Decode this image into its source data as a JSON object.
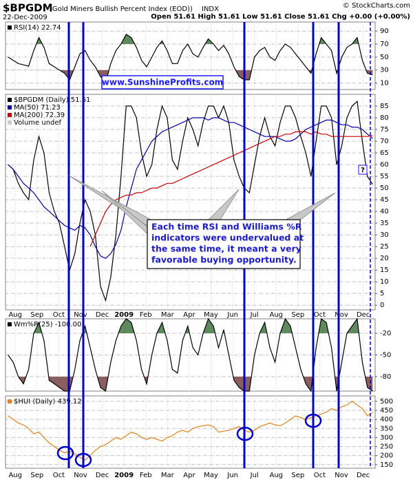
{
  "header": {
    "symbol": "$BPGDM",
    "description": "(Gold Miners Bullish Percent Index (EOD))",
    "exchange": "INDX",
    "date": "22-Dec-2009",
    "quote": "Open 51.61  High 51.61  Low 51.61  Close 51.61  Chg +0.00 (+0.00%)",
    "source": "© StockCharts.com"
  },
  "months": [
    "Aug",
    "Sep",
    "Oct",
    "Nov",
    "Dec",
    "2009",
    "Feb",
    "Mar",
    "Apr",
    "May",
    "Jun",
    "Jul",
    "Aug",
    "Sep",
    "Oct",
    "Nov",
    "Dec"
  ],
  "annotations": {
    "website": "www.SunshineProfits.com",
    "callout": [
      "Each time RSI and Williams %R",
      "indicators were undervalued at",
      "the same time, it meant a very",
      "favorable buying opportunity."
    ],
    "question": "?"
  },
  "chart_data": [
    {
      "type": "line",
      "title": "RSI(14) 22.74",
      "ylim": [
        0,
        104
      ],
      "yticks": [
        10,
        30,
        50,
        70,
        90
      ],
      "fill_above": 70,
      "fill_below": 30,
      "fill_colors": [
        "#5e8a5e",
        "#8a5e5e"
      ],
      "series": [
        {
          "color": "#000000",
          "values": [
            50,
            45,
            40,
            38,
            36,
            60,
            80,
            65,
            40,
            35,
            30,
            25,
            15,
            35,
            55,
            60,
            45,
            35,
            20,
            10,
            40,
            60,
            70,
            85,
            80,
            65,
            45,
            35,
            50,
            65,
            75,
            60,
            40,
            40,
            60,
            70,
            55,
            50,
            65,
            78,
            70,
            60,
            68,
            55,
            35,
            20,
            15,
            15,
            50,
            60,
            65,
            50,
            45,
            60,
            70,
            65,
            55,
            45,
            35,
            25,
            55,
            80,
            70,
            60,
            25,
            50,
            65,
            70,
            80,
            45,
            25,
            22.74
          ]
        }
      ]
    },
    {
      "type": "line",
      "ylim": [
        -2,
        90
      ],
      "yticks": [
        0,
        5,
        10,
        15,
        20,
        25,
        30,
        35,
        40,
        45,
        50,
        55,
        60,
        65,
        70,
        75,
        80,
        85
      ],
      "volume_label": "Volume undef",
      "series": [
        {
          "name": "$BPGDM (Daily) 51.61",
          "color": "#000000",
          "values": [
            60,
            58,
            52,
            48,
            45,
            62,
            72,
            65,
            48,
            40,
            35,
            25,
            15,
            22,
            35,
            45,
            40,
            30,
            8,
            2,
            12,
            30,
            55,
            85,
            85,
            80,
            65,
            55,
            60,
            75,
            85,
            80,
            62,
            58,
            70,
            80,
            75,
            68,
            78,
            85,
            85,
            80,
            85,
            78,
            62,
            55,
            50,
            48,
            60,
            72,
            80,
            72,
            68,
            78,
            85,
            85,
            80,
            72,
            65,
            55,
            70,
            85,
            85,
            80,
            60,
            68,
            80,
            85,
            87,
            70,
            55,
            51.61
          ]
        },
        {
          "name": "MA(50) 71.23",
          "color": "#0000aa",
          "values": [
            60,
            58,
            55,
            52,
            50,
            48,
            45,
            42,
            40,
            38,
            36,
            34,
            33,
            32,
            34,
            33,
            30,
            25,
            21,
            20,
            22,
            26,
            32,
            42,
            50,
            58,
            62,
            66,
            70,
            72,
            74,
            75,
            76,
            77,
            78,
            79,
            80,
            80,
            80,
            79,
            80,
            80,
            79,
            78,
            78,
            77,
            76,
            75,
            74,
            73,
            72,
            72,
            72,
            71,
            70,
            70,
            71,
            73,
            75,
            76,
            77,
            78,
            79,
            79,
            78,
            77,
            77,
            76,
            76,
            75,
            73,
            71.23
          ]
        },
        {
          "name": "MA(200) 72.39",
          "color": "#cc0000",
          "values": [
            null,
            null,
            null,
            null,
            null,
            null,
            null,
            null,
            null,
            null,
            null,
            null,
            null,
            null,
            null,
            null,
            25,
            30,
            35,
            40,
            43,
            45,
            46,
            47,
            47,
            48,
            48,
            49,
            50,
            50,
            51,
            52,
            52,
            53,
            54,
            55,
            56,
            57,
            58,
            59,
            60,
            61,
            62,
            63,
            64,
            65,
            66,
            67,
            68,
            69,
            70,
            71,
            72,
            72,
            73,
            73,
            74,
            74,
            74,
            73,
            74,
            73,
            73,
            72,
            72,
            72,
            72,
            72,
            72,
            72,
            72,
            72.39
          ]
        }
      ]
    },
    {
      "type": "line",
      "title": "Wm%R(25) -100.00",
      "ylim": [
        -100,
        0
      ],
      "yticks": [
        -20,
        -50,
        -80
      ],
      "fill_above": -20,
      "fill_below": -80,
      "fill_colors": [
        "#5e8a5e",
        "#8a5e5e"
      ],
      "series": [
        {
          "color": "#000000",
          "values": [
            -50,
            -60,
            -80,
            -90,
            -70,
            -20,
            -5,
            -30,
            -85,
            -90,
            -95,
            -100,
            -100,
            -70,
            -30,
            -10,
            -40,
            -70,
            -95,
            -100,
            -60,
            -30,
            -10,
            0,
            -5,
            -30,
            -70,
            -90,
            -50,
            -20,
            -5,
            -30,
            -70,
            -75,
            -30,
            -10,
            -40,
            -50,
            -20,
            0,
            -10,
            -40,
            -15,
            -50,
            -85,
            -95,
            -100,
            -100,
            -50,
            -20,
            -5,
            -40,
            -60,
            -20,
            0,
            -10,
            -40,
            -70,
            -90,
            -100,
            -40,
            0,
            -5,
            -40,
            -100,
            -60,
            -20,
            -10,
            0,
            -60,
            -95,
            -100
          ]
        }
      ]
    },
    {
      "type": "line",
      "title": "$HUI (Daily) 439.12",
      "ylim": [
        130,
        530
      ],
      "yticks": [
        150,
        200,
        250,
        300,
        350,
        400,
        450,
        500
      ],
      "series": [
        {
          "color": "#e8821e",
          "values": [
            420,
            400,
            380,
            370,
            350,
            320,
            330,
            300,
            270,
            250,
            230,
            215,
            225,
            210,
            190,
            175,
            200,
            230,
            250,
            260,
            280,
            300,
            290,
            310,
            330,
            320,
            300,
            290,
            300,
            290,
            280,
            300,
            310,
            330,
            340,
            330,
            350,
            360,
            365,
            370,
            360,
            330,
            335,
            340,
            350,
            360,
            340,
            330,
            340,
            360,
            370,
            380,
            370,
            365,
            380,
            400,
            420,
            410,
            400,
            410,
            420,
            430,
            440,
            460,
            450,
            470,
            480,
            500,
            480,
            460,
            420,
            439.12
          ]
        }
      ]
    }
  ]
}
